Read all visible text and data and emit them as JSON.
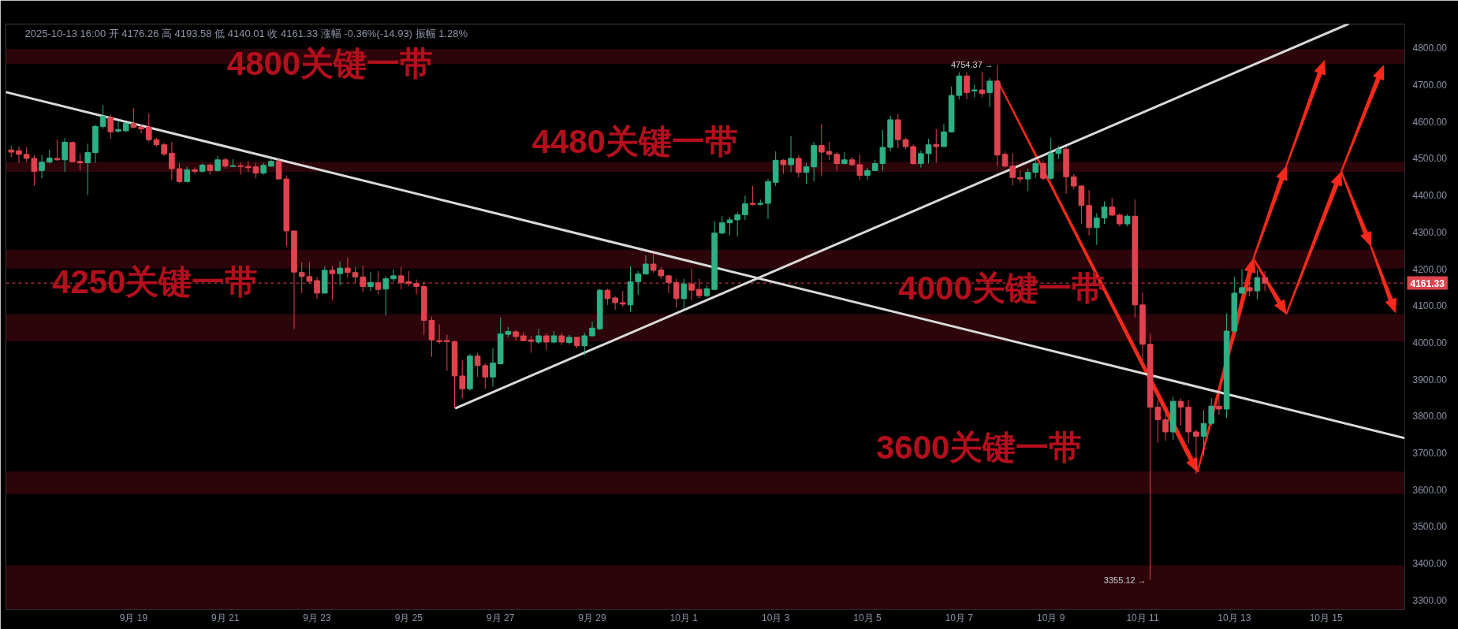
{
  "chart_data": {
    "type": "candlestick",
    "subtitle": "2025-10-13 16:00 开 4176.26 高 4193.58 低 4140.01 收 4161.33 涨幅 -0.36%(-14.93) 振幅 1.28%",
    "xlim": [
      "2025-09-16T05:12",
      "2025-10-16T17:12"
    ],
    "ylim": [
      3274,
      4865
    ],
    "xticks": [
      {
        "value": "2025-09-19",
        "label": "9月 19"
      },
      {
        "value": "2025-09-21",
        "label": "9月 21"
      },
      {
        "value": "2025-09-23",
        "label": "9月 23"
      },
      {
        "value": "2025-09-25",
        "label": "9月 25"
      },
      {
        "value": "2025-09-27",
        "label": "9月 27"
      },
      {
        "value": "2025-09-29",
        "label": "9月 29"
      },
      {
        "value": "2025-10-01",
        "label": "10月 1"
      },
      {
        "value": "2025-10-03",
        "label": "10月 3"
      },
      {
        "value": "2025-10-05",
        "label": "10月 5"
      },
      {
        "value": "2025-10-07",
        "label": "10月 7"
      },
      {
        "value": "2025-10-09",
        "label": "10月 9"
      },
      {
        "value": "2025-10-11",
        "label": "10月 11"
      },
      {
        "value": "2025-10-13",
        "label": "10月 13"
      },
      {
        "value": "2025-10-15",
        "label": "10月 15"
      }
    ],
    "yticks": [
      {
        "value": 3300,
        "label": "3300.00"
      },
      {
        "value": 3400,
        "label": "3400.00"
      },
      {
        "value": 3500,
        "label": "3500.00"
      },
      {
        "value": 3600,
        "label": "3600.00"
      },
      {
        "value": 3700,
        "label": "3700.00"
      },
      {
        "value": 3800,
        "label": "3800.00"
      },
      {
        "value": 3900,
        "label": "3900.00"
      },
      {
        "value": 4000,
        "label": "4000.00"
      },
      {
        "value": 4100,
        "label": "4100.00"
      },
      {
        "value": 4200,
        "label": "4200.00"
      },
      {
        "value": 4300,
        "label": "4300.00"
      },
      {
        "value": 4400,
        "label": "4400.00"
      },
      {
        "value": 4500,
        "label": "4500.00"
      },
      {
        "value": 4600,
        "label": "4600.00"
      },
      {
        "value": 4700,
        "label": "4700.00"
      },
      {
        "value": 4800,
        "label": "4800.00"
      }
    ],
    "bands": [
      {
        "axis": "y",
        "from": 4757,
        "to": 4797,
        "label": "4800关键一带",
        "color": "#2c050a"
      },
      {
        "axis": "y",
        "from": 4463,
        "to": 4491,
        "label": "4480关键一带",
        "color": "#2c050a"
      },
      {
        "axis": "y",
        "from": 4201,
        "to": 4252,
        "label": "4250关键一带",
        "color": "#2c050a"
      },
      {
        "axis": "y",
        "from": 4003,
        "to": 4077,
        "label": "4000关键一带",
        "color": "#2c050a"
      },
      {
        "axis": "y",
        "from": 3588,
        "to": 3649,
        "label": "3600关键一带",
        "color": "#2c050a"
      },
      {
        "axis": "y",
        "from": 3274,
        "to": 3394,
        "color": "#2c050a"
      }
    ],
    "ref_lines": [
      {
        "axis": "y",
        "value": 4161.33,
        "label": "4161.33",
        "color": "#e0434f",
        "line_style": "dashed"
      }
    ],
    "annotations": [
      {
        "text": "4754.37 →",
        "x": "2025-10-07T20:00",
        "y": 4754.37
      },
      {
        "text": "3355.12 →",
        "x": "2025-10-11T04:00",
        "y": 3355.12
      }
    ],
    "series": [
      {
        "type": "line",
        "color": "#d9d9d9",
        "x": [
          "2025-09-16T05:12",
          "2025-10-16T17:12"
        ],
        "values": [
          4680,
          3740
        ]
      },
      {
        "type": "line",
        "color": "#d9d9d9",
        "x": [
          "2025-09-26T00:48",
          "2025-10-15T11:30"
        ],
        "values": [
          3822,
          4865
        ]
      },
      {
        "x": [
          "2025-09-16T08:00",
          "2025-09-16T12:00",
          "2025-09-16T16:00",
          "2025-09-16T20:00",
          "2025-09-17T00:00",
          "2025-09-17T04:00",
          "2025-09-17T08:00",
          "2025-09-17T12:00",
          "2025-09-17T16:00",
          "2025-09-17T20:00",
          "2025-09-18T00:00",
          "2025-09-18T04:00",
          "2025-09-18T08:00",
          "2025-09-18T12:00",
          "2025-09-18T16:00",
          "2025-09-18T20:00",
          "2025-09-19T00:00",
          "2025-09-19T04:00",
          "2025-09-19T08:00",
          "2025-09-19T12:00",
          "2025-09-19T16:00",
          "2025-09-19T20:00",
          "2025-09-20T00:00",
          "2025-09-20T04:00",
          "2025-09-20T08:00",
          "2025-09-20T12:00",
          "2025-09-20T16:00",
          "2025-09-20T20:00",
          "2025-09-21T00:00",
          "2025-09-21T04:00",
          "2025-09-21T08:00",
          "2025-09-21T12:00",
          "2025-09-21T16:00",
          "2025-09-21T20:00",
          "2025-09-22T00:00",
          "2025-09-22T04:00",
          "2025-09-22T08:00",
          "2025-09-22T12:00",
          "2025-09-22T16:00",
          "2025-09-22T20:00",
          "2025-09-23T00:00",
          "2025-09-23T04:00",
          "2025-09-23T08:00",
          "2025-09-23T12:00",
          "2025-09-23T16:00",
          "2025-09-23T20:00",
          "2025-09-24T00:00",
          "2025-09-24T04:00",
          "2025-09-24T08:00",
          "2025-09-24T12:00",
          "2025-09-24T16:00",
          "2025-09-24T20:00",
          "2025-09-25T00:00",
          "2025-09-25T04:00",
          "2025-09-25T08:00",
          "2025-09-25T12:00",
          "2025-09-25T16:00",
          "2025-09-25T20:00",
          "2025-09-26T00:00",
          "2025-09-26T04:00",
          "2025-09-26T08:00",
          "2025-09-26T12:00",
          "2025-09-26T16:00",
          "2025-09-26T20:00",
          "2025-09-27T00:00",
          "2025-09-27T04:00",
          "2025-09-27T08:00",
          "2025-09-27T12:00",
          "2025-09-27T16:00",
          "2025-09-27T20:00",
          "2025-09-28T00:00",
          "2025-09-28T04:00",
          "2025-09-28T08:00",
          "2025-09-28T12:00",
          "2025-09-28T16:00",
          "2025-09-28T20:00",
          "2025-09-29T00:00",
          "2025-09-29T04:00",
          "2025-09-29T08:00",
          "2025-09-29T12:00",
          "2025-09-29T16:00",
          "2025-09-29T20:00",
          "2025-09-30T00:00",
          "2025-09-30T04:00",
          "2025-09-30T08:00",
          "2025-09-30T12:00",
          "2025-09-30T16:00",
          "2025-09-30T20:00",
          "2025-10-01T00:00",
          "2025-10-01T04:00",
          "2025-10-01T08:00",
          "2025-10-01T12:00",
          "2025-10-01T16:00",
          "2025-10-01T20:00",
          "2025-10-02T00:00",
          "2025-10-02T04:00",
          "2025-10-02T08:00",
          "2025-10-02T12:00",
          "2025-10-02T16:00",
          "2025-10-02T20:00",
          "2025-10-03T00:00",
          "2025-10-03T04:00",
          "2025-10-03T08:00",
          "2025-10-03T12:00",
          "2025-10-03T16:00",
          "2025-10-03T20:00",
          "2025-10-04T00:00",
          "2025-10-04T04:00",
          "2025-10-04T08:00",
          "2025-10-04T12:00",
          "2025-10-04T16:00",
          "2025-10-04T20:00",
          "2025-10-05T00:00",
          "2025-10-05T04:00",
          "2025-10-05T08:00",
          "2025-10-05T12:00",
          "2025-10-05T16:00",
          "2025-10-05T20:00",
          "2025-10-06T00:00",
          "2025-10-06T04:00",
          "2025-10-06T08:00",
          "2025-10-06T12:00",
          "2025-10-06T16:00",
          "2025-10-06T20:00",
          "2025-10-07T00:00",
          "2025-10-07T04:00",
          "2025-10-07T08:00",
          "2025-10-07T12:00",
          "2025-10-07T16:00",
          "2025-10-07T20:00",
          "2025-10-08T00:00",
          "2025-10-08T04:00",
          "2025-10-08T08:00",
          "2025-10-08T12:00",
          "2025-10-08T16:00",
          "2025-10-08T20:00",
          "2025-10-09T00:00",
          "2025-10-09T04:00",
          "2025-10-09T08:00",
          "2025-10-09T12:00",
          "2025-10-09T16:00",
          "2025-10-09T20:00",
          "2025-10-10T00:00",
          "2025-10-10T04:00",
          "2025-10-10T08:00",
          "2025-10-10T12:00",
          "2025-10-10T16:00",
          "2025-10-10T20:00",
          "2025-10-11T00:00",
          "2025-10-11T04:00",
          "2025-10-11T08:00",
          "2025-10-11T12:00",
          "2025-10-11T16:00",
          "2025-10-11T20:00",
          "2025-10-12T00:00",
          "2025-10-12T04:00",
          "2025-10-12T08:00",
          "2025-10-12T12:00",
          "2025-10-12T16:00",
          "2025-10-12T20:00",
          "2025-10-13T00:00",
          "2025-10-13T04:00",
          "2025-10-13T08:00",
          "2025-10-13T12:00",
          "2025-10-13T16:00"
        ],
        "ohlc": [
          [
            4523,
            4535,
            4504,
            4517
          ],
          [
            4521,
            4532,
            4488,
            4511
          ],
          [
            4511,
            4530,
            4490,
            4500
          ],
          [
            4500,
            4509,
            4425,
            4465
          ],
          [
            4467,
            4509,
            4446,
            4490
          ],
          [
            4490,
            4524,
            4486,
            4501
          ],
          [
            4500,
            4551,
            4493,
            4496
          ],
          [
            4496,
            4555,
            4464,
            4544
          ],
          [
            4543,
            4546,
            4490,
            4491
          ],
          [
            4492,
            4514,
            4467,
            4488
          ],
          [
            4488,
            4540,
            4400,
            4516
          ],
          [
            4516,
            4591,
            4488,
            4587
          ],
          [
            4587,
            4645,
            4580,
            4614
          ],
          [
            4611,
            4619,
            4553,
            4572
          ],
          [
            4574,
            4603,
            4570,
            4578
          ],
          [
            4575,
            4598,
            4572,
            4595
          ],
          [
            4595,
            4637,
            4582,
            4584
          ],
          [
            4585,
            4592,
            4568,
            4580
          ],
          [
            4585,
            4622,
            4545,
            4551
          ],
          [
            4551,
            4556,
            4532,
            4537
          ],
          [
            4537,
            4542,
            4507,
            4512
          ],
          [
            4514,
            4545,
            4441,
            4472
          ],
          [
            4472,
            4488,
            4433,
            4437
          ],
          [
            4437,
            4477,
            4435,
            4469
          ],
          [
            4469,
            4475,
            4458,
            4465
          ],
          [
            4465,
            4486,
            4462,
            4482
          ],
          [
            4482,
            4486,
            4456,
            4467
          ],
          [
            4467,
            4507,
            4465,
            4496
          ],
          [
            4496,
            4502,
            4472,
            4479
          ],
          [
            4478,
            4498,
            4477,
            4480
          ],
          [
            4480,
            4490,
            4456,
            4478
          ],
          [
            4478,
            4493,
            4462,
            4475
          ],
          [
            4477,
            4488,
            4446,
            4460
          ],
          [
            4460,
            4488,
            4456,
            4481
          ],
          [
            4479,
            4498,
            4477,
            4492
          ],
          [
            4492,
            4498,
            4443,
            4444
          ],
          [
            4444,
            4454,
            4261,
            4303
          ],
          [
            4303,
            4303,
            4037,
            4191
          ],
          [
            4190,
            4218,
            4134,
            4179
          ],
          [
            4179,
            4218,
            4159,
            4166
          ],
          [
            4168,
            4178,
            4119,
            4134
          ],
          [
            4134,
            4207,
            4133,
            4196
          ],
          [
            4197,
            4208,
            4115,
            4187
          ],
          [
            4187,
            4220,
            4155,
            4202
          ],
          [
            4202,
            4230,
            4176,
            4190
          ],
          [
            4190,
            4205,
            4163,
            4178
          ],
          [
            4178,
            4208,
            4136,
            4152
          ],
          [
            4152,
            4191,
            4140,
            4163
          ],
          [
            4162,
            4194,
            4131,
            4144
          ],
          [
            4145,
            4181,
            4073,
            4173
          ],
          [
            4173,
            4199,
            4165,
            4181
          ],
          [
            4181,
            4205,
            4144,
            4163
          ],
          [
            4165,
            4194,
            4152,
            4160
          ],
          [
            4160,
            4171,
            4131,
            4152
          ],
          [
            4152,
            4165,
            4021,
            4060
          ],
          [
            4060,
            4070,
            3961,
            4007
          ],
          [
            4005,
            4049,
            3997,
            4002
          ],
          [
            4005,
            4021,
            3923,
            4002
          ],
          [
            4002,
            4005,
            3822,
            3909
          ],
          [
            3909,
            3953,
            3848,
            3874
          ],
          [
            3874,
            3969,
            3869,
            3963
          ],
          [
            3963,
            3972,
            3906,
            3937
          ],
          [
            3937,
            3944,
            3874,
            3906
          ],
          [
            3906,
            3984,
            3880,
            3944
          ],
          [
            3942,
            4068,
            3940,
            4023
          ],
          [
            4022,
            4042,
            4014,
            4030
          ],
          [
            4029,
            4034,
            4005,
            4016
          ],
          [
            4018,
            4028,
            4003,
            4005
          ],
          [
            4007,
            4018,
            3972,
            4003
          ],
          [
            4001,
            4037,
            3995,
            4018
          ],
          [
            4018,
            4026,
            3979,
            4001
          ],
          [
            4001,
            4031,
            3997,
            4018
          ],
          [
            4018,
            4026,
            3993,
            4001
          ],
          [
            4000,
            4021,
            3995,
            4014
          ],
          [
            4014,
            4014,
            3984,
            3991
          ],
          [
            3991,
            4026,
            3965,
            4018
          ],
          [
            4018,
            4056,
            4016,
            4039
          ],
          [
            4037,
            4146,
            4034,
            4142
          ],
          [
            4142,
            4146,
            4102,
            4119
          ],
          [
            4121,
            4126,
            4089,
            4108
          ],
          [
            4108,
            4140,
            4097,
            4104
          ],
          [
            4102,
            4207,
            4083,
            4165
          ],
          [
            4165,
            4194,
            4129,
            4186
          ],
          [
            4186,
            4236,
            4184,
            4213
          ],
          [
            4213,
            4242,
            4189,
            4196
          ],
          [
            4197,
            4205,
            4173,
            4181
          ],
          [
            4181,
            4184,
            4134,
            4163
          ],
          [
            4163,
            4173,
            4094,
            4119
          ],
          [
            4119,
            4173,
            4093,
            4159
          ],
          [
            4159,
            4201,
            4115,
            4142
          ],
          [
            4144,
            4173,
            4121,
            4127
          ],
          [
            4127,
            4155,
            4123,
            4146
          ],
          [
            4144,
            4330,
            4142,
            4297
          ],
          [
            4297,
            4343,
            4294,
            4325
          ],
          [
            4325,
            4341,
            4291,
            4333
          ],
          [
            4333,
            4354,
            4288,
            4347
          ],
          [
            4347,
            4399,
            4333,
            4377
          ],
          [
            4378,
            4425,
            4372,
            4375
          ],
          [
            4375,
            4388,
            4372,
            4378
          ],
          [
            4378,
            4444,
            4335,
            4437
          ],
          [
            4435,
            4519,
            4425,
            4495
          ],
          [
            4495,
            4498,
            4458,
            4483
          ],
          [
            4483,
            4561,
            4462,
            4500
          ],
          [
            4500,
            4509,
            4448,
            4462
          ],
          [
            4462,
            4488,
            4430,
            4477
          ],
          [
            4477,
            4545,
            4437,
            4535
          ],
          [
            4535,
            4593,
            4451,
            4517
          ],
          [
            4519,
            4545,
            4496,
            4511
          ],
          [
            4511,
            4517,
            4465,
            4486
          ],
          [
            4486,
            4517,
            4483,
            4496
          ],
          [
            4496,
            4504,
            4479,
            4483
          ],
          [
            4483,
            4511,
            4441,
            4454
          ],
          [
            4454,
            4475,
            4441,
            4467
          ],
          [
            4467,
            4496,
            4465,
            4486
          ],
          [
            4486,
            4577,
            4465,
            4530
          ],
          [
            4530,
            4616,
            4519,
            4605
          ],
          [
            4605,
            4620,
            4528,
            4551
          ],
          [
            4551,
            4556,
            4525,
            4532
          ],
          [
            4532,
            4538,
            4482,
            4486
          ],
          [
            4486,
            4521,
            4475,
            4513
          ],
          [
            4513,
            4553,
            4486,
            4537
          ],
          [
            4538,
            4580,
            4488,
            4532
          ],
          [
            4532,
            4593,
            4532,
            4572
          ],
          [
            4572,
            4695,
            4570,
            4671
          ],
          [
            4671,
            4734,
            4660,
            4724
          ],
          [
            4724,
            4734,
            4661,
            4679
          ],
          [
            4683,
            4700,
            4666,
            4686
          ],
          [
            4686,
            4734,
            4666,
            4676
          ],
          [
            4679,
            4719,
            4640,
            4710
          ],
          [
            4710,
            4754.37,
            4479,
            4509
          ],
          [
            4511,
            4519,
            4475,
            4479
          ],
          [
            4479,
            4514,
            4427,
            4448
          ],
          [
            4448,
            4467,
            4435,
            4444
          ],
          [
            4444,
            4472,
            4411,
            4462
          ],
          [
            4462,
            4498,
            4448,
            4486
          ],
          [
            4486,
            4493,
            4441,
            4446
          ],
          [
            4446,
            4556,
            4441,
            4514
          ],
          [
            4514,
            4535,
            4498,
            4525
          ],
          [
            4525,
            4532,
            4404,
            4450
          ],
          [
            4450,
            4458,
            4416,
            4425
          ],
          [
            4425,
            4427,
            4322,
            4372
          ],
          [
            4372,
            4414,
            4291,
            4312
          ],
          [
            4312,
            4351,
            4265,
            4338
          ],
          [
            4338,
            4383,
            4322,
            4368
          ],
          [
            4368,
            4393,
            4343,
            4346
          ],
          [
            4346,
            4351,
            4315,
            4322
          ],
          [
            4322,
            4349,
            4315,
            4343
          ],
          [
            4343,
            4388,
            4068,
            4102
          ],
          [
            4102,
            4136,
            3953,
            3995
          ],
          [
            3995,
            4024,
            3355.12,
            3824
          ],
          [
            3824,
            3843,
            3727,
            3790
          ],
          [
            3790,
            3816,
            3733,
            3757
          ],
          [
            3757,
            3853,
            3735,
            3840
          ],
          [
            3840,
            3848,
            3774,
            3824
          ],
          [
            3824,
            3843,
            3727,
            3757
          ],
          [
            3757,
            3764,
            3643,
            3745
          ],
          [
            3745,
            3816,
            3693,
            3780
          ],
          [
            3780,
            3848,
            3774,
            3827
          ],
          [
            3827,
            3864,
            3804,
            3819
          ],
          [
            3819,
            4079,
            3795,
            4031
          ],
          [
            4031,
            4178,
            4026,
            4134
          ],
          [
            4134,
            4199,
            4131,
            4149
          ],
          [
            4149,
            4165,
            4125,
            4140
          ],
          [
            4140,
            4197,
            4117,
            4176.26
          ],
          [
            4176.26,
            4193.58,
            4140.01,
            4161.33
          ]
        ],
        "colors": [
          "#e0434f",
          "#e0434f",
          "#e0434f",
          "#e0434f",
          "#2eaf86",
          "#2eaf86",
          "#e0434f",
          "#2eaf86",
          "#e0434f",
          "#e0434f",
          "#2eaf86",
          "#2eaf86",
          "#2eaf86",
          "#e0434f",
          "#2eaf86",
          "#2eaf86",
          "#e0434f",
          "#e0434f",
          "#e0434f",
          "#e0434f",
          "#e0434f",
          "#e0434f",
          "#e0434f",
          "#2eaf86",
          "#e0434f",
          "#2eaf86",
          "#e0434f",
          "#2eaf86",
          "#e0434f",
          "#2eaf86",
          "#e0434f",
          "#e0434f",
          "#e0434f",
          "#2eaf86",
          "#2eaf86",
          "#e0434f",
          "#e0434f",
          "#e0434f",
          "#e0434f",
          "#e0434f",
          "#e0434f",
          "#2eaf86",
          "#e0434f",
          "#2eaf86",
          "#e0434f",
          "#e0434f",
          "#e0434f",
          "#2eaf86",
          "#e0434f",
          "#2eaf86",
          "#2eaf86",
          "#e0434f",
          "#e0434f",
          "#e0434f",
          "#e0434f",
          "#e0434f",
          "#e0434f",
          "#e0434f",
          "#e0434f",
          "#e0434f",
          "#2eaf86",
          "#e0434f",
          "#e0434f",
          "#2eaf86",
          "#2eaf86",
          "#2eaf86",
          "#e0434f",
          "#e0434f",
          "#e0434f",
          "#2eaf86",
          "#e0434f",
          "#2eaf86",
          "#e0434f",
          "#2eaf86",
          "#e0434f",
          "#2eaf86",
          "#2eaf86",
          "#2eaf86",
          "#e0434f",
          "#e0434f",
          "#e0434f",
          "#2eaf86",
          "#2eaf86",
          "#2eaf86",
          "#e0434f",
          "#e0434f",
          "#e0434f",
          "#e0434f",
          "#2eaf86",
          "#e0434f",
          "#e0434f",
          "#2eaf86",
          "#2eaf86",
          "#2eaf86",
          "#2eaf86",
          "#2eaf86",
          "#2eaf86",
          "#e0434f",
          "#2eaf86",
          "#2eaf86",
          "#2eaf86",
          "#e0434f",
          "#2eaf86",
          "#e0434f",
          "#2eaf86",
          "#2eaf86",
          "#e0434f",
          "#e0434f",
          "#e0434f",
          "#2eaf86",
          "#e0434f",
          "#e0434f",
          "#2eaf86",
          "#2eaf86",
          "#2eaf86",
          "#2eaf86",
          "#e0434f",
          "#e0434f",
          "#e0434f",
          "#2eaf86",
          "#2eaf86",
          "#e0434f",
          "#2eaf86",
          "#2eaf86",
          "#2eaf86",
          "#e0434f",
          "#2eaf86",
          "#e0434f",
          "#2eaf86",
          "#e0434f",
          "#e0434f",
          "#e0434f",
          "#e0434f",
          "#2eaf86",
          "#2eaf86",
          "#e0434f",
          "#2eaf86",
          "#2eaf86",
          "#e0434f",
          "#e0434f",
          "#e0434f",
          "#e0434f",
          "#2eaf86",
          "#2eaf86",
          "#e0434f",
          "#e0434f",
          "#2eaf86",
          "#e0434f",
          "#e0434f",
          "#e0434f",
          "#e0434f",
          "#e0434f",
          "#2eaf86",
          "#e0434f",
          "#e0434f",
          "#e0434f",
          "#2eaf86",
          "#2eaf86",
          "#e0434f",
          "#2eaf86",
          "#2eaf86",
          "#2eaf86",
          "#e0434f",
          "#2eaf86",
          "#e0434f"
        ]
      }
    ]
  }
}
